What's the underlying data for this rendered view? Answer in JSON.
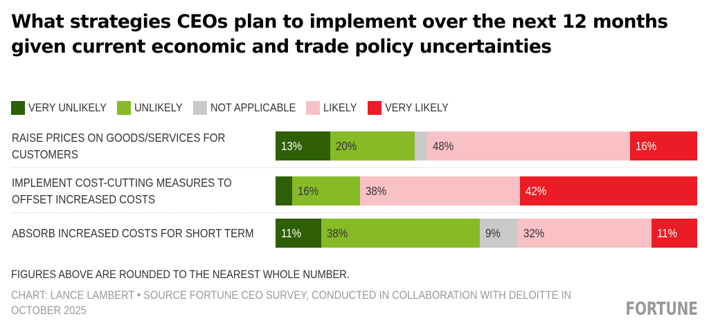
{
  "chart_data": {
    "type": "bar",
    "orientation": "horizontal",
    "stacked": true,
    "title": "What strategies CEOs plan to implement over the next 12 months given current economic and trade policy uncertainties",
    "categories": [
      "RAISE PRICES ON GOODS/SERVICES FOR CUSTOMERS",
      "IMPLEMENT COST-CUTTING MEASURES TO OFFSET INCREASED COSTS",
      "ABSORB INCREASED COSTS FOR SHORT TERM"
    ],
    "category_lines": [
      [
        "RAISE PRICES ON GOODS/SERVICES FOR",
        "CUSTOMERS"
      ],
      [
        "IMPLEMENT COST-CUTTING MEASURES TO",
        "OFFSET INCREASED COSTS"
      ],
      [
        "ABSORB INCREASED COSTS FOR SHORT TERM"
      ]
    ],
    "series": [
      {
        "name": "VERY UNLIKELY",
        "color": "#2e5e05",
        "label_color": "#ffffff",
        "values": [
          13,
          4,
          11
        ],
        "labels": [
          "13%",
          "",
          "11%"
        ]
      },
      {
        "name": "UNLIKELY",
        "color": "#86bb27",
        "label_color": "#333333",
        "values": [
          20,
          16,
          38
        ],
        "labels": [
          "20%",
          "16%",
          "38%"
        ]
      },
      {
        "name": "NOT APPLICABLE",
        "color": "#cacaca",
        "label_color": "#333333",
        "values": [
          3,
          0,
          9
        ],
        "labels": [
          "",
          "",
          "9%"
        ]
      },
      {
        "name": "LIKELY",
        "color": "#f9c1c5",
        "label_color": "#333333",
        "values": [
          48,
          38,
          32
        ],
        "labels": [
          "48%",
          "38%",
          "32%"
        ]
      },
      {
        "name": "VERY LIKELY",
        "color": "#ec1c26",
        "label_color": "#ffffff",
        "values": [
          16,
          42,
          11
        ],
        "labels": [
          "16%",
          "42%",
          "11%"
        ]
      }
    ],
    "xlim": [
      0,
      100
    ],
    "legend_position": "top-left",
    "grid": false,
    "xlabel": "",
    "ylabel": ""
  },
  "footer": {
    "note": "FIGURES ABOVE ARE ROUNDED TO THE NEAREST WHOLE NUMBER.",
    "credit": "CHART: LANCE LAMBERT • SOURCE FORTUNE CEO SURVEY, CONDUCTED IN COLLABORATION WITH DELOITTE IN OCTOBER 2025",
    "logo": "FORTUNE"
  }
}
